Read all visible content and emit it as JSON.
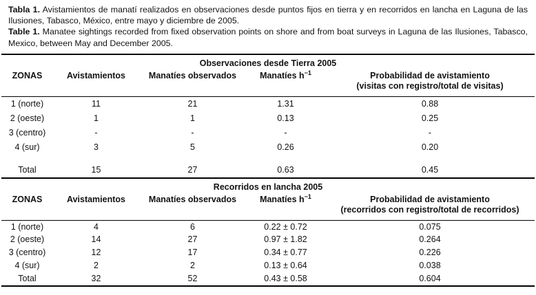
{
  "caption": {
    "es": {
      "label": "Tabla 1.",
      "text": "Avistamientos de manatí realizados en observaciones desde puntos fijos en tierra y en recorridos en lancha en Laguna de las Ilusiones, Tabasco, México, entre mayo y diciembre de 2005."
    },
    "en": {
      "label": "Table 1.",
      "text": "Manatee sightings recorded from fixed observation points on shore and from boat surveys in Laguna de las Ilusiones, Tabasco, Mexico, between May and December 2005."
    }
  },
  "tables": [
    {
      "section_title": "Observaciones desde Tierra 2005",
      "columns": {
        "zonas": "ZONAS",
        "avistamientos": "Avistamientos",
        "manaties_observados": "Manatíes observados",
        "manaties_h": "Manatíes h",
        "manaties_h_sup": "−1",
        "probabilidad_line1": "Probabilidad de avistamiento",
        "probabilidad_line2": "(visitas con registro/total de visitas)"
      },
      "rows": [
        [
          "1 (norte)",
          "11",
          "21",
          "1.31",
          "0.88"
        ],
        [
          "2 (oeste)",
          "1",
          "1",
          "0.13",
          "0.25"
        ],
        [
          "3 (centro)",
          "-",
          "-",
          "-",
          "-"
        ],
        [
          "4 (sur)",
          "3",
          "5",
          "0.26",
          "0.20"
        ]
      ],
      "total": [
        "Total",
        "15",
        "27",
        "0.63",
        "0.45"
      ]
    },
    {
      "section_title": "Recorridos en lancha 2005",
      "columns": {
        "zonas": "ZONAS",
        "avistamientos": "Avistamientos",
        "manaties_observados": "Manatíes observados",
        "manaties_h": "Manatíes h",
        "manaties_h_sup": "−1",
        "probabilidad_line1": "Probabilidad de avistamiento",
        "probabilidad_line2": "(recorridos con registro/total de recorridos)"
      },
      "rows": [
        [
          "1 (norte)",
          "4",
          "6",
          "0.22 ± 0.72",
          "0.075"
        ],
        [
          "2 (oeste)",
          "14",
          "27",
          "0.97 ± 1.82",
          "0.264"
        ],
        [
          "3 (centro)",
          "12",
          "17",
          "0.34 ± 0.77",
          "0.226"
        ],
        [
          "4 (sur)",
          "2",
          "2",
          "0.13 ± 0.64",
          "0.038"
        ]
      ],
      "total": [
        "Total",
        "32",
        "52",
        "0.43 ± 0.58",
        "0.604"
      ]
    }
  ]
}
